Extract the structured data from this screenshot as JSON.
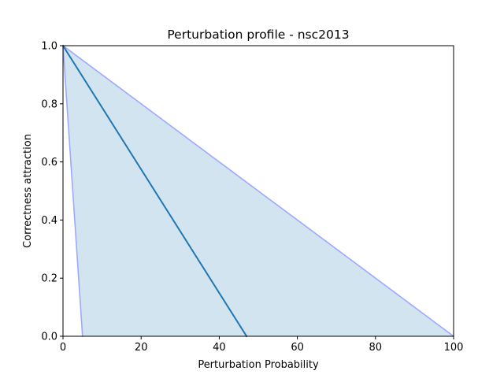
{
  "chart_data": {
    "type": "line",
    "title": "Perturbation profile - nsc2013",
    "xlabel": "Perturbation Probability",
    "ylabel": "Correctness attraction",
    "xlim": [
      0,
      100
    ],
    "ylim": [
      0,
      1
    ],
    "xticks": [
      0,
      20,
      40,
      60,
      80,
      100
    ],
    "xtick_labels": [
      "0",
      "20",
      "40",
      "60",
      "80",
      "100"
    ],
    "yticks": [
      0,
      0.2,
      0.4,
      0.6,
      0.8,
      1.0
    ],
    "ytick_labels": [
      "0.0",
      "0.2",
      "0.4",
      "0.6",
      "0.8",
      "1.0"
    ],
    "grid": false,
    "legend": "none",
    "series": [
      {
        "role": "main",
        "color": "#1f77b4",
        "x": [
          0,
          47
        ],
        "y": [
          1.0,
          0.0
        ]
      },
      {
        "role": "lower-bound",
        "color": "#9ea8ff",
        "x": [
          0,
          5
        ],
        "y": [
          1.0,
          0.0
        ]
      },
      {
        "role": "upper-bound",
        "color": "#9ea8ff",
        "x": [
          0,
          100
        ],
        "y": [
          1.0,
          0.0
        ]
      }
    ],
    "fill": {
      "between": [
        "lower-bound",
        "upper-bound"
      ],
      "color": "#1f77b4",
      "opacity": 0.2
    }
  }
}
